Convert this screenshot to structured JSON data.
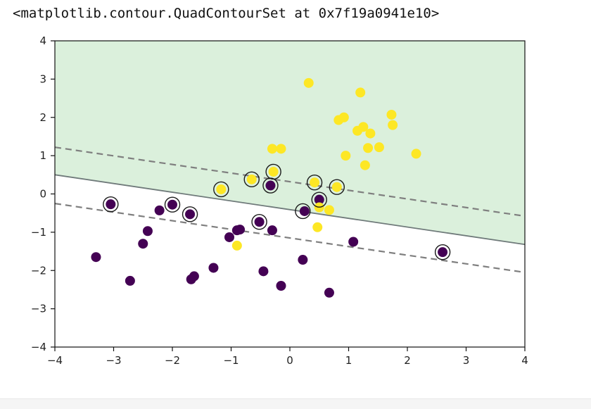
{
  "output_repr": "<matplotlib.contour.QuadContourSet at 0x7f19a0941e10>",
  "chart_data": {
    "type": "scatter",
    "title": "",
    "xlabel": "",
    "ylabel": "",
    "xlim": [
      -4,
      4
    ],
    "ylim": [
      -4,
      4
    ],
    "xticks": [
      "−4",
      "−3",
      "−2",
      "−1",
      "0",
      "1",
      "2",
      "3",
      "4"
    ],
    "yticks": [
      "−4",
      "−3",
      "−2",
      "−1",
      "0",
      "1",
      "2",
      "3",
      "4"
    ],
    "xtick_values": [
      -4,
      -3,
      -2,
      -1,
      0,
      1,
      2,
      3,
      4
    ],
    "ytick_values": [
      -4,
      -3,
      -2,
      -1,
      0,
      1,
      2,
      3,
      4
    ],
    "grid": false,
    "colors": {
      "class0": "#440154",
      "class1": "#fde725",
      "region": "#dbf0dc",
      "boundary": "#7f7f7f"
    },
    "decision_boundary": {
      "x": [
        -4,
        4
      ],
      "y": [
        0.5,
        -1.32
      ]
    },
    "margin_upper": {
      "x": [
        -4,
        4
      ],
      "y": [
        1.22,
        -0.58
      ]
    },
    "margin_lower": {
      "x": [
        -4,
        4
      ],
      "y": [
        -0.25,
        -2.05
      ]
    },
    "series": [
      {
        "class": 0,
        "x": [
          -3.05,
          -3.3,
          -2.72,
          -2.5,
          -2.42,
          -2.22,
          -2.0,
          -1.7,
          -1.68,
          -1.63,
          -1.3,
          -1.03,
          -0.9,
          -0.85,
          -0.52,
          -0.45,
          -0.3,
          -0.33,
          -0.15,
          0.22,
          0.25,
          0.5,
          0.67,
          1.08,
          2.6
        ],
        "y": [
          -0.27,
          -1.65,
          -2.27,
          -1.3,
          -0.97,
          -0.43,
          -0.28,
          -0.53,
          -2.23,
          -2.15,
          -1.93,
          -1.13,
          -0.95,
          -0.93,
          -0.73,
          -2.02,
          -0.95,
          0.22,
          -2.4,
          -1.72,
          -0.45,
          -0.15,
          -2.58,
          -1.25,
          -1.52
        ]
      },
      {
        "class": 1,
        "x": [
          -1.17,
          -0.65,
          -0.28,
          -0.3,
          -0.15,
          -0.9,
          0.32,
          0.42,
          0.47,
          0.5,
          0.67,
          0.8,
          0.83,
          0.92,
          0.95,
          1.15,
          1.2,
          1.25,
          1.28,
          1.33,
          1.37,
          1.52,
          1.73,
          1.75,
          2.15
        ],
        "y": [
          0.12,
          0.38,
          0.58,
          1.18,
          1.18,
          -1.35,
          2.9,
          0.3,
          -0.87,
          -0.35,
          -0.42,
          0.18,
          1.93,
          2.0,
          1.0,
          1.65,
          2.65,
          1.75,
          0.75,
          1.2,
          1.58,
          1.22,
          2.07,
          1.8,
          1.05
        ]
      }
    ],
    "support_vectors": {
      "x": [
        -3.05,
        -2.0,
        -1.7,
        -1.17,
        -0.65,
        -0.52,
        -0.33,
        -0.28,
        0.22,
        0.42,
        0.5,
        0.8,
        2.6
      ],
      "y": [
        -0.27,
        -0.28,
        -0.53,
        0.12,
        0.38,
        -0.73,
        0.22,
        0.58,
        -0.45,
        0.3,
        -0.15,
        0.18,
        -1.52
      ]
    }
  }
}
